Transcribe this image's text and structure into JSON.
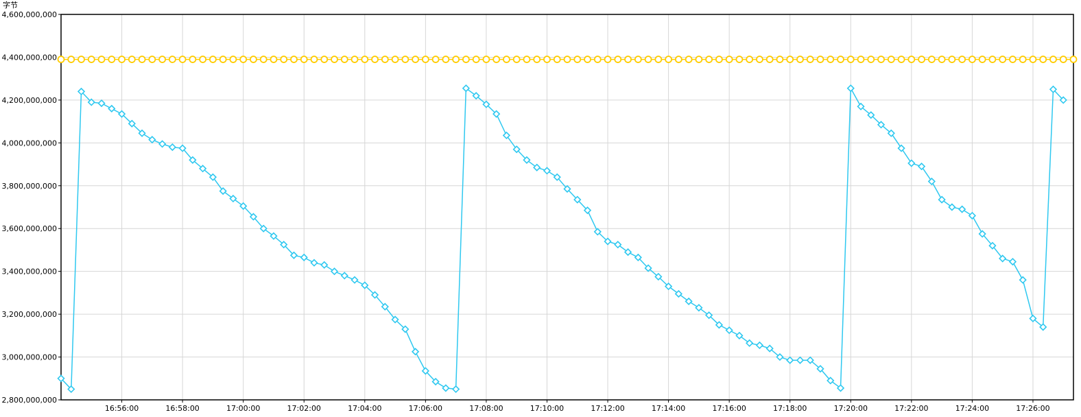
{
  "unit_label": "字节",
  "chart_data": {
    "type": "line",
    "title": "",
    "xlabel": "",
    "ylabel": "字节",
    "ylim": [
      2800000000,
      4600000000
    ],
    "yticks": [
      2800000000,
      3000000000,
      3200000000,
      3400000000,
      3600000000,
      3800000000,
      4000000000,
      4200000000,
      4400000000,
      4600000000
    ],
    "ytick_labels": [
      "2,800,000,000",
      "3,000,000,000",
      "3,200,000,000",
      "3,400,000,000",
      "3,600,000,000",
      "3,800,000,000",
      "4,000,000,000",
      "4,200,000,000",
      "4,400,000,000",
      "4,600,000,000"
    ],
    "xlim": [
      "16:54:00",
      "17:27:20"
    ],
    "xticks": [
      "16:56:00",
      "16:58:00",
      "17:00:00",
      "17:02:00",
      "17:04:00",
      "17:06:00",
      "17:08:00",
      "17:10:00",
      "17:12:00",
      "17:14:00",
      "17:16:00",
      "17:18:00",
      "17:20:00",
      "17:22:00",
      "17:24:00",
      "17:26:00"
    ],
    "sample_interval_seconds": 20,
    "grid": true,
    "legend": "none",
    "series": [
      {
        "color": "#ffcc00",
        "marker": "circle",
        "constant_value": 4390000000
      },
      {
        "color": "#2ec8f0",
        "marker": "diamond",
        "values": [
          2900000000,
          2850000000,
          4240000000,
          4190000000,
          4185000000,
          4160000000,
          4135000000,
          4090000000,
          4045000000,
          4015000000,
          3995000000,
          3980000000,
          3975000000,
          3920000000,
          3880000000,
          3840000000,
          3775000000,
          3740000000,
          3705000000,
          3655000000,
          3600000000,
          3565000000,
          3525000000,
          3475000000,
          3465000000,
          3440000000,
          3430000000,
          3400000000,
          3380000000,
          3360000000,
          3335000000,
          3290000000,
          3235000000,
          3175000000,
          3130000000,
          3025000000,
          2935000000,
          2885000000,
          2855000000,
          2850000000,
          4255000000,
          4220000000,
          4180000000,
          4135000000,
          4035000000,
          3970000000,
          3920000000,
          3885000000,
          3870000000,
          3840000000,
          3785000000,
          3735000000,
          3685000000,
          3585000000,
          3540000000,
          3525000000,
          3490000000,
          3465000000,
          3415000000,
          3375000000,
          3330000000,
          3295000000,
          3260000000,
          3230000000,
          3195000000,
          3150000000,
          3125000000,
          3100000000,
          3065000000,
          3055000000,
          3040000000,
          3000000000,
          2985000000,
          2985000000,
          2985000000,
          2945000000,
          2890000000,
          2855000000,
          4255000000,
          4170000000,
          4130000000,
          4085000000,
          4045000000,
          3975000000,
          3905000000,
          3890000000,
          3820000000,
          3735000000,
          3700000000,
          3690000000,
          3660000000,
          3575000000,
          3520000000,
          3460000000,
          3445000000,
          3360000000,
          3180000000,
          3140000000,
          4250000000,
          4200000000
        ]
      }
    ]
  }
}
